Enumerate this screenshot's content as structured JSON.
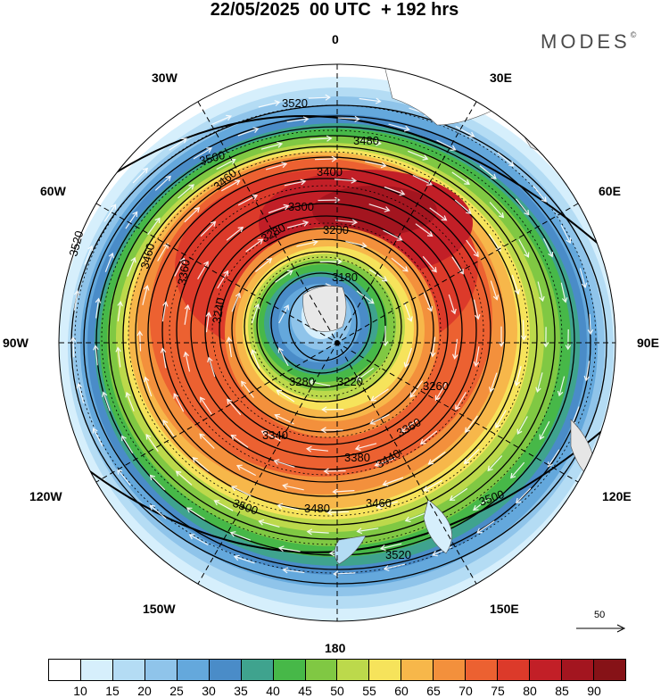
{
  "title": "22/05/2025  00 UTC  + 192 hrs",
  "brand": "MODES",
  "brand_mark": "©",
  "longitude_labels": {
    "top": "0",
    "bottom": "180",
    "left": "90W",
    "right": "90E",
    "w30": "30W",
    "e30": "30E",
    "w60": "60W",
    "e60": "60E",
    "w120": "120W",
    "e120": "120E",
    "w150": "150W",
    "e150": "150E"
  },
  "contour_labels": [
    "3520",
    "3500",
    "3480",
    "3460",
    "3440",
    "3400",
    "3380",
    "3360",
    "3340",
    "3300",
    "3280",
    "3260",
    "3240",
    "3220",
    "3200",
    "3180"
  ],
  "reference_vector": {
    "value": "50",
    "icon": "arrow-right-icon"
  },
  "colorbar": {
    "colors": [
      "#ffffff",
      "#d6effc",
      "#b4dcf4",
      "#8fc4ea",
      "#64a8dc",
      "#4a8cc8",
      "#3fa38e",
      "#47b848",
      "#80c843",
      "#bcd94b",
      "#f6e35b",
      "#f7b74a",
      "#f3903c",
      "#ec6131",
      "#dc3a2a",
      "#c21f27",
      "#a3151f",
      "#861217"
    ],
    "ticks": [
      "10",
      "15",
      "20",
      "25",
      "30",
      "35",
      "40",
      "45",
      "50",
      "55",
      "60",
      "65",
      "70",
      "75",
      "80",
      "85",
      "90"
    ]
  },
  "field": {
    "center": "pole",
    "low_value": "3180",
    "colors_note_values_by_ring_m_s": [
      90,
      85,
      80,
      75,
      70,
      65,
      60,
      55,
      50,
      45,
      40,
      35,
      30,
      25,
      20,
      15
    ]
  }
}
